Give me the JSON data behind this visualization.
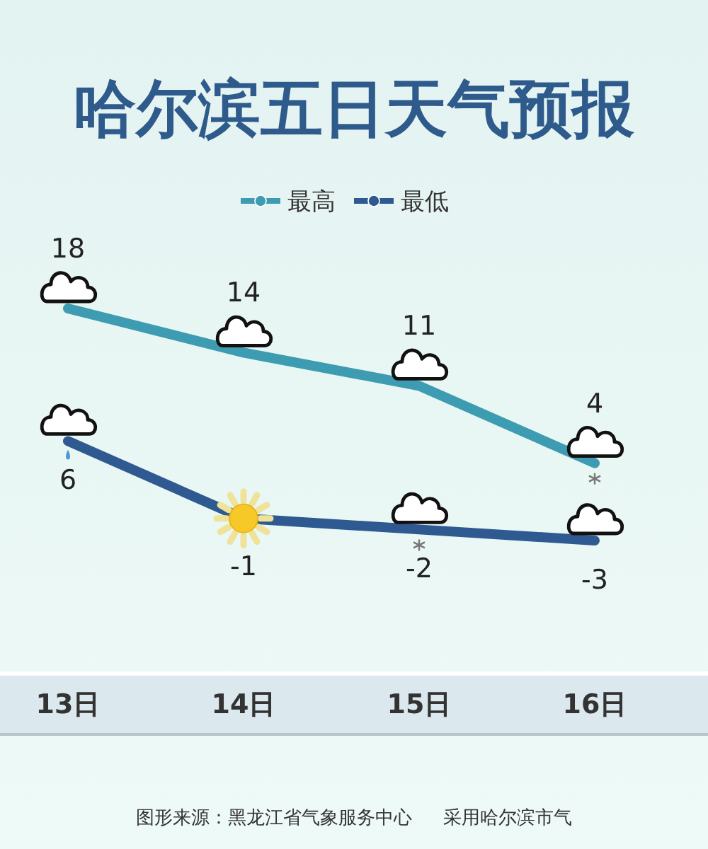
{
  "chart_data": {
    "type": "line",
    "title": "哈尔滨五日天气预报",
    "categories": [
      "13日",
      "14日",
      "15日",
      "16日"
    ],
    "series": [
      {
        "name": "最高",
        "color": "#3d9cb1",
        "values": [
          18,
          14,
          11,
          4
        ]
      },
      {
        "name": "最低",
        "color": "#2f5a91",
        "values": [
          6,
          -1,
          -2,
          -3
        ]
      }
    ],
    "data_labels": true,
    "legend": "top",
    "annotations": [
      "图形来源：黑龙江省气象服务中心",
      "采用哈尔滨市气"
    ]
  }
}
